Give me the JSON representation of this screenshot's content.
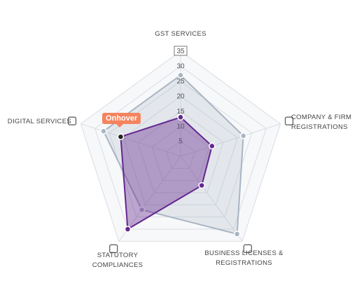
{
  "chart_data": {
    "type": "radar",
    "categories": [
      "GST SERVICES",
      "COMPANY & FIRM REGISTRATIONS",
      "BUSINESS LICENSES & REGISTRATIONS",
      "STATUTORY COMPLIANCES",
      "DIGITAL SERVICES"
    ],
    "series": [
      {
        "color": "#a9b5c3",
        "values": [
          27,
          22,
          32,
          22,
          27
        ]
      },
      {
        "color": "#64288f",
        "values": [
          13,
          11,
          12,
          30,
          21
        ]
      }
    ],
    "ylim": [
      0,
      35
    ],
    "yticks": [
      5,
      10,
      15,
      20,
      25,
      30,
      35
    ],
    "annotation": "Onhover"
  }
}
